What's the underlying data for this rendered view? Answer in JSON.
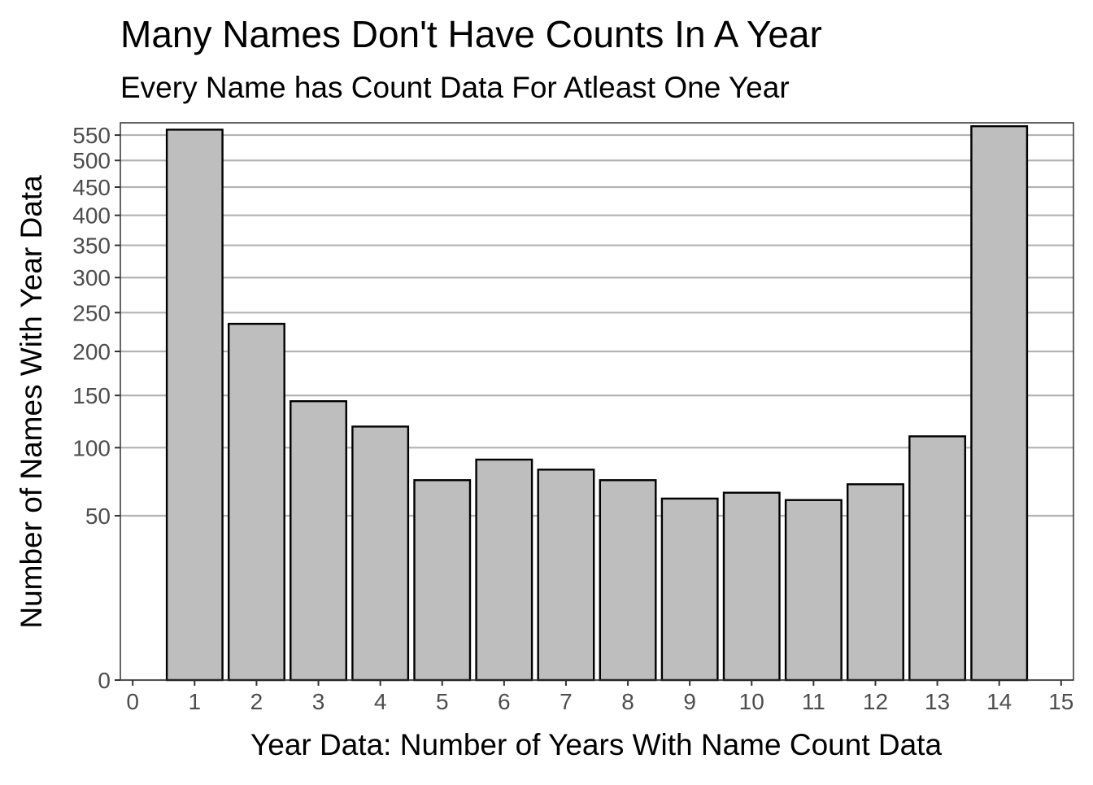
{
  "chart_data": {
    "type": "bar",
    "title": "Many Names Don't Have Counts In A Year",
    "subtitle": "Every Name has Count Data For Atleast One Year",
    "xlabel": "Year Data: Number of Years With Name Count Data",
    "ylabel": "Number of Names With Year Data",
    "x_scale": "linear",
    "y_scale": "sqrt",
    "xlim": [
      -0.2,
      15.2
    ],
    "ylim": [
      0,
      575
    ],
    "x_ticks": [
      0,
      1,
      2,
      3,
      4,
      5,
      6,
      7,
      8,
      9,
      10,
      11,
      12,
      13,
      14,
      15
    ],
    "y_ticks": [
      0,
      50,
      100,
      150,
      200,
      250,
      300,
      350,
      400,
      450,
      500,
      550
    ],
    "grid": "horizontal",
    "legend": "none",
    "x": [
      1,
      2,
      3,
      4,
      5,
      6,
      7,
      8,
      9,
      10,
      11,
      12,
      13,
      14
    ],
    "values": [
      561,
      235,
      144,
      119,
      74,
      90,
      82,
      74,
      61,
      65,
      60,
      71,
      110,
      568
    ],
    "colors": {
      "bar_fill": "#bebebe",
      "bar_stroke": "#000000",
      "grid": "#b3b3b3",
      "panel_border": "#333333",
      "tick_text": "#4d4d4d",
      "text": "#000000"
    }
  }
}
